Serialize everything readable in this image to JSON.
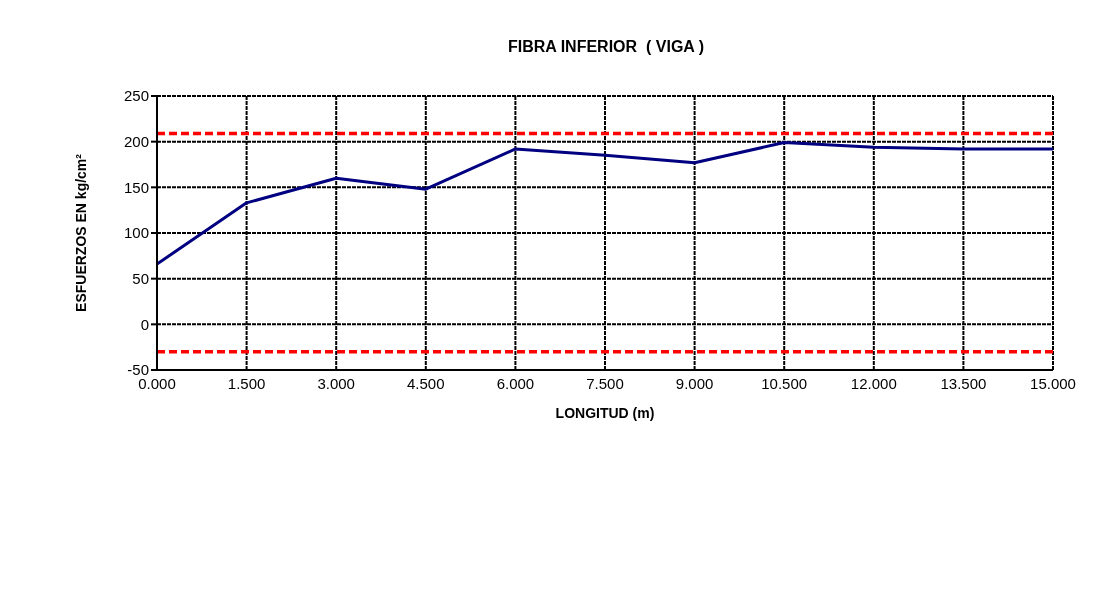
{
  "chart_data": {
    "type": "line",
    "title": "FIBRA INFERIOR  ( VIGA )",
    "xlabel": "LONGITUD  (m)",
    "ylabel": "ESFUERZOS EN kg/cm²",
    "x": [
      0,
      1.5,
      3,
      4.5,
      6,
      7.5,
      9,
      10.5,
      12,
      13.5,
      15
    ],
    "series": [
      {
        "color": "#000080",
        "values": [
          66,
          133,
          160,
          148,
          192,
          185,
          177,
          199,
          194,
          192,
          192
        ]
      }
    ],
    "xlim": [
      0,
      15
    ],
    "xticks": [
      {
        "value": 0,
        "label": "0.000"
      },
      {
        "value": 1.5,
        "label": "1.500"
      },
      {
        "value": 3,
        "label": "3.000"
      },
      {
        "value": 4.5,
        "label": "4.500"
      },
      {
        "value": 6,
        "label": "6.000"
      },
      {
        "value": 7.5,
        "label": "7.500"
      },
      {
        "value": 9,
        "label": "9.000"
      },
      {
        "value": 10.5,
        "label": "10.500"
      },
      {
        "value": 12,
        "label": "12.000"
      },
      {
        "value": 13.5,
        "label": "13.500"
      },
      {
        "value": 15,
        "label": "15.000"
      }
    ],
    "ylim": [
      -50,
      250
    ],
    "yticks": [
      -50,
      0,
      50,
      100,
      150,
      200,
      250
    ],
    "ref_lines": [
      {
        "axis": "y",
        "value": 209,
        "color": "#ff0000",
        "line_style": "dashed"
      },
      {
        "axis": "y",
        "value": -30,
        "color": "#ff0000",
        "line_style": "dashed"
      }
    ],
    "grid": true,
    "marker": "none",
    "line_style": "solid"
  }
}
